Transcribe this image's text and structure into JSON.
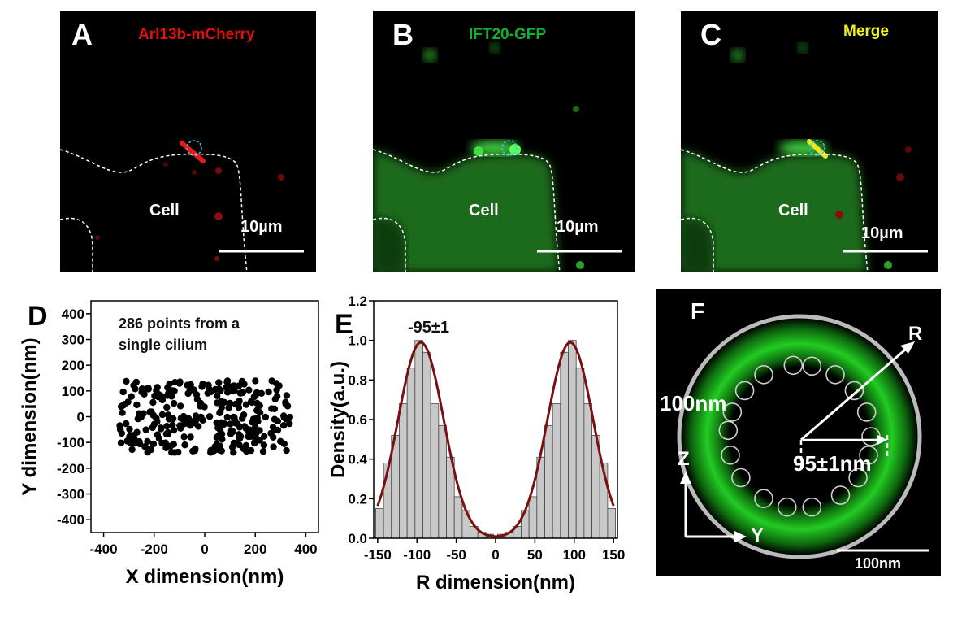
{
  "panels": {
    "A": {
      "letter": "A",
      "channel": "Arl13b-mCherry",
      "channel_color": "#e01010",
      "cell": "Cell",
      "scale": "10µm"
    },
    "B": {
      "letter": "B",
      "channel": "IFT20-GFP",
      "channel_color": "#10b030",
      "cell": "Cell",
      "scale": "10µm"
    },
    "C": {
      "letter": "C",
      "channel": "Merge",
      "channel_color": "#f0f020",
      "cell": "Cell",
      "scale": "10µm"
    },
    "D": {
      "letter": "D",
      "annotation_line1": "286 points from a",
      "annotation_line2": "single cilium"
    },
    "E": {
      "letter": "E",
      "peak_label": "-95±1"
    },
    "F": {
      "letter": "F",
      "r_label": "R",
      "diameter_label": "100nm",
      "radius_label": "95±1nm",
      "z_label": "Z",
      "y_label": "Y",
      "scale": "100nm",
      "ring_color": "#1fcf1f"
    }
  },
  "chart_data": [
    {
      "type": "scatter",
      "panel": "D",
      "xlabel": "X dimension(nm)",
      "ylabel": "Y dimension(nm)",
      "xlim": [
        -450,
        450
      ],
      "ylim": [
        -450,
        450
      ],
      "xticks": [
        -400,
        -200,
        0,
        200,
        400
      ],
      "yticks": [
        -400,
        -300,
        -200,
        -100,
        0,
        100,
        200,
        300,
        400
      ],
      "n_points": 286,
      "x_range": [
        -340,
        340
      ],
      "y_range": [
        -140,
        140
      ]
    },
    {
      "type": "bar",
      "panel": "E",
      "xlabel": "R dimension(nm)",
      "ylabel": "Density(a.u.)",
      "xlim": [
        -155,
        155
      ],
      "ylim": [
        0,
        1.2
      ],
      "xticks": [
        -150,
        -100,
        -50,
        0,
        50,
        100,
        150
      ],
      "yticks": [
        0.0,
        0.2,
        0.4,
        0.6,
        0.8,
        1.0,
        1.2
      ],
      "bin_centers": [
        -147.5,
        -137.5,
        -127.5,
        -117.5,
        -107.5,
        -97.5,
        -87.5,
        -77.5,
        -67.5,
        -57.5,
        -47.5,
        -37.5,
        -27.5,
        -17.5,
        -7.5,
        7.5,
        17.5,
        27.5,
        37.5,
        47.5,
        57.5,
        67.5,
        77.5,
        87.5,
        97.5,
        107.5,
        117.5,
        127.5,
        137.5,
        147.5
      ],
      "values": [
        0.15,
        0.38,
        0.52,
        0.68,
        0.86,
        1.0,
        0.94,
        0.68,
        0.57,
        0.41,
        0.21,
        0.14,
        0.06,
        0.03,
        0.02,
        0.02,
        0.03,
        0.06,
        0.14,
        0.21,
        0.41,
        0.57,
        0.68,
        0.94,
        1.0,
        0.86,
        0.68,
        0.52,
        0.38,
        0.15
      ],
      "fit": {
        "type": "gaussian",
        "peaks": [
          -95,
          95
        ],
        "sigma": 29,
        "amplitude": 0.99
      }
    }
  ]
}
